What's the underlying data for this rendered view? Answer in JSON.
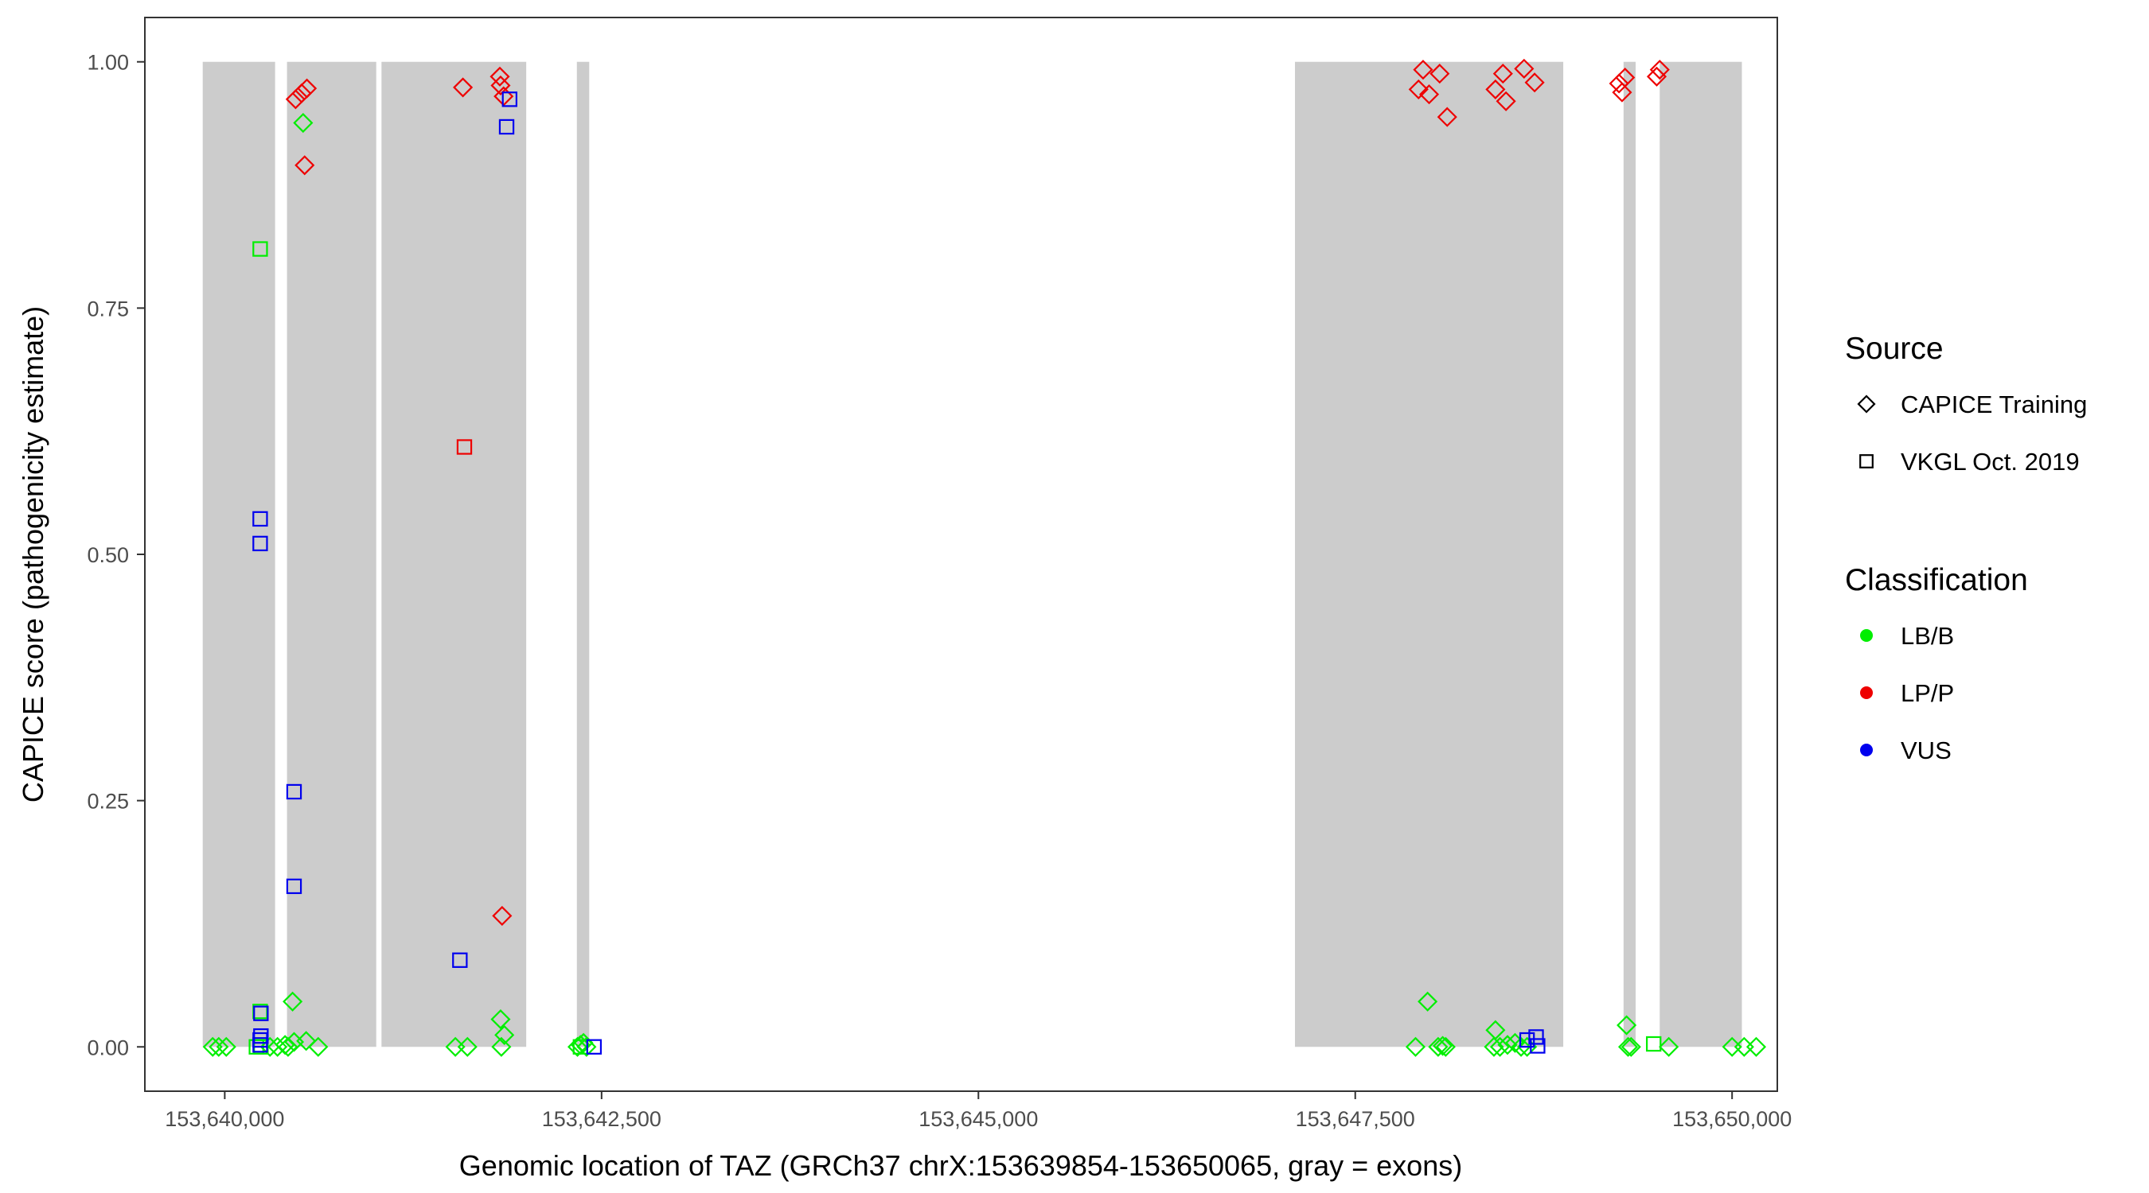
{
  "chart_data": {
    "type": "scatter",
    "xlabel": "Genomic location of TAZ (GRCh37 chrX:153639854-153650065, gray = exons)",
    "ylabel": "CAPICE score (pathogenicity estimate)",
    "xlim": [
      153639470,
      153650300
    ],
    "ylim": [
      -0.045,
      1.045
    ],
    "x_ticks": [
      153640000,
      153642500,
      153645000,
      153647500,
      153650000
    ],
    "x_tick_labels": [
      "153,640,000",
      "153,642,500",
      "153,645,000",
      "153,647,500",
      "153,650,000"
    ],
    "y_ticks": [
      0,
      0.25,
      0.5,
      0.75,
      1.0
    ],
    "y_tick_labels": [
      "0.00",
      "0.25",
      "0.50",
      "0.75",
      "1.00"
    ],
    "grid": false,
    "exons": [
      [
        153639854,
        153640334
      ],
      [
        153640413,
        153641005
      ],
      [
        153641040,
        153642000
      ],
      [
        153642336,
        153642418
      ],
      [
        153647100,
        153648880
      ],
      [
        153649280,
        153649360
      ],
      [
        153649520,
        153650065
      ]
    ],
    "exon_color": "#cccccc",
    "legend_position": "right",
    "legend": {
      "source_title": "Source",
      "source_items": [
        {
          "label": "CAPICE Training",
          "shape": "diamond"
        },
        {
          "label": "VKGL Oct. 2019",
          "shape": "square"
        }
      ],
      "class_title": "Classification",
      "class_items": [
        {
          "label": "LB/B",
          "color": "#00ee00"
        },
        {
          "label": "LP/P",
          "color": "#ee0000"
        },
        {
          "label": "VUS",
          "color": "#0000ee"
        }
      ]
    },
    "series": [
      {
        "source": "CAPICE Training",
        "classification": "LP/P",
        "points": [
          [
            153640470,
            0.962
          ],
          [
            153640510,
            0.968
          ],
          [
            153640545,
            0.973
          ],
          [
            153640530,
            0.895
          ],
          [
            153641580,
            0.974
          ],
          [
            153641825,
            0.985
          ],
          [
            153641830,
            0.976
          ],
          [
            153641850,
            0.965
          ],
          [
            153641840,
            0.133
          ],
          [
            153647920,
            0.972
          ],
          [
            153647950,
            0.992
          ],
          [
            153647990,
            0.967
          ],
          [
            153648060,
            0.988
          ],
          [
            153648110,
            0.944
          ],
          [
            153648430,
            0.972
          ],
          [
            153648480,
            0.988
          ],
          [
            153648500,
            0.96
          ],
          [
            153648620,
            0.993
          ],
          [
            153648690,
            0.979
          ],
          [
            153649250,
            0.978
          ],
          [
            153649270,
            0.969
          ],
          [
            153649290,
            0.984
          ],
          [
            153649500,
            0.985
          ],
          [
            153649520,
            0.992
          ]
        ]
      },
      {
        "source": "CAPICE Training",
        "classification": "LB/B",
        "points": [
          [
            153640520,
            0.938
          ],
          [
            153640450,
            0.046
          ],
          [
            153640540,
            0.006
          ],
          [
            153640620,
            0.0
          ],
          [
            153640400,
            0.002
          ],
          [
            153640460,
            0.005
          ],
          [
            153640350,
            0.0
          ],
          [
            153640420,
            0.0
          ],
          [
            153639920,
            0.0
          ],
          [
            153639960,
            0.0
          ],
          [
            153640010,
            0.0
          ],
          [
            153640300,
            0.0
          ],
          [
            153641530,
            0.0
          ],
          [
            153641610,
            0.0
          ],
          [
            153641830,
            0.028
          ],
          [
            153641855,
            0.012
          ],
          [
            153641835,
            0.0
          ],
          [
            153642340,
            0.0
          ],
          [
            153642360,
            0.002
          ],
          [
            153642380,
            0.004
          ],
          [
            153642400,
            0.0
          ],
          [
            153647900,
            0.0
          ],
          [
            153647980,
            0.046
          ],
          [
            153648080,
            0.001
          ],
          [
            153648100,
            0.0
          ],
          [
            153648050,
            0.0
          ],
          [
            153648430,
            0.017
          ],
          [
            153648420,
            0.0
          ],
          [
            153648460,
            0.0
          ],
          [
            153648510,
            0.002
          ],
          [
            153648560,
            0.004
          ],
          [
            153648600,
            0.0
          ],
          [
            153648640,
            0.0
          ],
          [
            153649300,
            0.022
          ],
          [
            153649310,
            0.0
          ],
          [
            153649330,
            0.0
          ],
          [
            153649580,
            0.0
          ],
          [
            153650000,
            0.0
          ],
          [
            153650080,
            0.0
          ],
          [
            153650160,
            0.0
          ]
        ]
      },
      {
        "source": "VKGL Oct. 2019",
        "classification": "LB/B",
        "points": [
          [
            153640235,
            0.81
          ],
          [
            153640235,
            0.036
          ],
          [
            153640210,
            0.0
          ],
          [
            153640240,
            0.0
          ],
          [
            153642360,
            0.0
          ],
          [
            153649480,
            0.003
          ]
        ]
      },
      {
        "source": "VKGL Oct. 2019",
        "classification": "LP/P",
        "points": [
          [
            153641590,
            0.609
          ]
        ]
      },
      {
        "source": "VKGL Oct. 2019",
        "classification": "VUS",
        "points": [
          [
            153640235,
            0.536
          ],
          [
            153640235,
            0.511
          ],
          [
            153640460,
            0.259
          ],
          [
            153640460,
            0.163
          ],
          [
            153640240,
            0.034
          ],
          [
            153640240,
            0.011
          ],
          [
            153640235,
            0.007
          ],
          [
            153640235,
            0.002
          ],
          [
            153641560,
            0.088
          ],
          [
            153641870,
            0.934
          ],
          [
            153641890,
            0.962
          ],
          [
            153642450,
            0.0
          ],
          [
            153648640,
            0.007
          ],
          [
            153648700,
            0.01
          ],
          [
            153648710,
            0.001
          ]
        ]
      }
    ]
  }
}
